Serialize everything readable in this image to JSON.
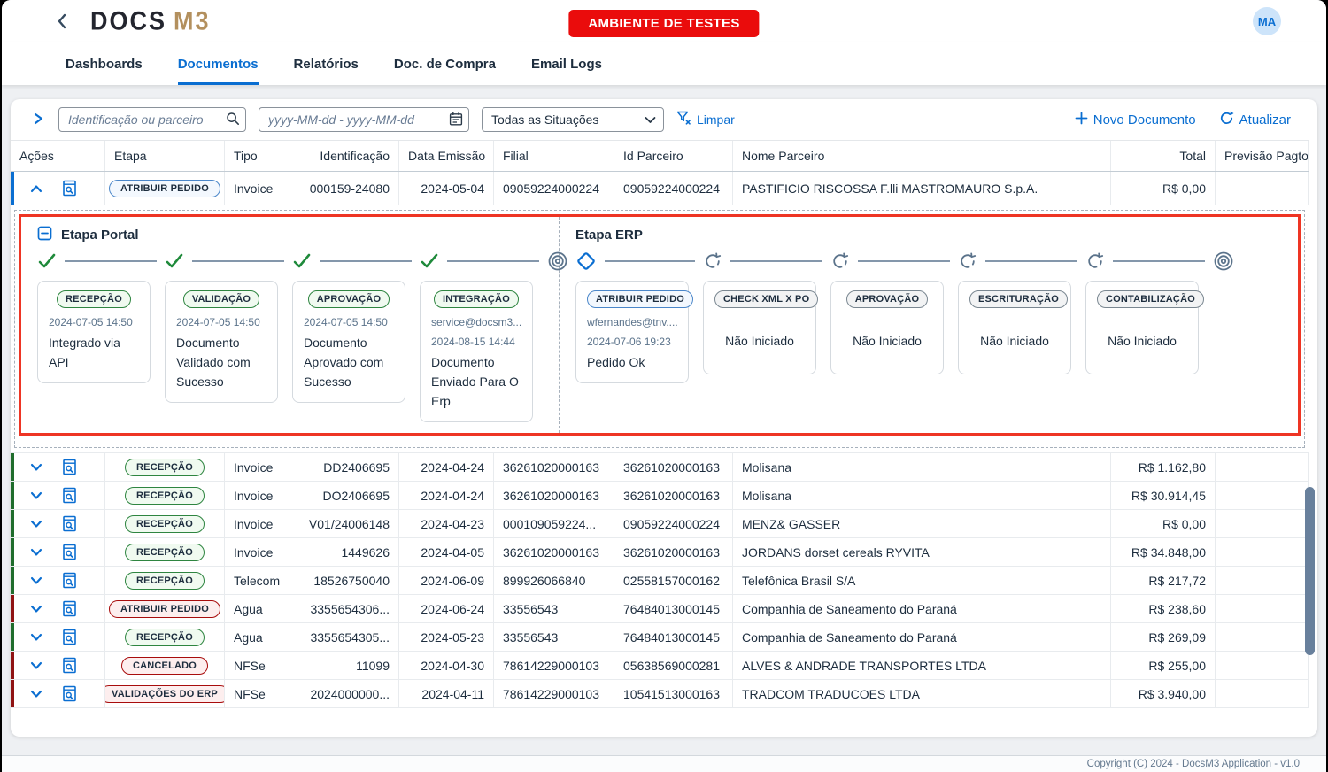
{
  "header": {
    "logo_docs": "DOCS",
    "logo_m3": "M3",
    "env_badge": "AMBIENTE DE TESTES",
    "avatar_initials": "MA"
  },
  "nav": {
    "tabs": [
      {
        "label": "Dashboards",
        "active": false
      },
      {
        "label": "Documentos",
        "active": true
      },
      {
        "label": "Relatórios",
        "active": false
      },
      {
        "label": "Doc. de Compra",
        "active": false
      },
      {
        "label": "Email Logs",
        "active": false
      }
    ]
  },
  "toolbar": {
    "search_placeholder": "Identificação ou parceiro",
    "date_placeholder": "yyyy-MM-dd - yyyy-MM-dd",
    "status_value": "Todas as Situações",
    "clear_label": "Limpar",
    "new_doc_label": "Novo Documento",
    "refresh_label": "Atualizar"
  },
  "table": {
    "columns": [
      "Ações",
      "Etapa",
      "Tipo",
      "Identificação",
      "Data Emissão",
      "Filial",
      "Id Parceiro",
      "Nome Parceiro",
      "Total",
      "Previsão Pagto"
    ],
    "rows": [
      {
        "etapa": "ATRIBUIR PEDIDO",
        "variant": "blue",
        "strip": "blue",
        "expanded": true,
        "tipo": "Invoice",
        "identificacao": "000159-24080",
        "data_emissao": "2024-05-04",
        "filial": "09059224000224",
        "id_parceiro": "09059224000224",
        "nome_parceiro": "PASTIFICIO RISCOSSA F.lli MASTROMAURO S.p.A.",
        "total": "R$ 0,00",
        "previsao_pagto": ""
      },
      {
        "etapa": "RECEPÇÃO",
        "variant": "green",
        "strip": "green",
        "expanded": false,
        "tipo": "Invoice",
        "identificacao": "DD2406695",
        "data_emissao": "2024-04-24",
        "filial": "36261020000163",
        "id_parceiro": "36261020000163",
        "nome_parceiro": "Molisana",
        "total": "R$ 1.162,80",
        "previsao_pagto": ""
      },
      {
        "etapa": "RECEPÇÃO",
        "variant": "green",
        "strip": "green",
        "expanded": false,
        "tipo": "Invoice",
        "identificacao": "DO2406695",
        "data_emissao": "2024-04-24",
        "filial": "36261020000163",
        "id_parceiro": "36261020000163",
        "nome_parceiro": "Molisana",
        "total": "R$ 30.914,45",
        "previsao_pagto": ""
      },
      {
        "etapa": "RECEPÇÃO",
        "variant": "green",
        "strip": "green",
        "expanded": false,
        "tipo": "Invoice",
        "identificacao": "V01/24006148",
        "data_emissao": "2024-04-23",
        "filial": "000109059224...",
        "id_parceiro": "09059224000224",
        "nome_parceiro": "MENZ& GASSER",
        "total": "R$ 0,00",
        "previsao_pagto": ""
      },
      {
        "etapa": "RECEPÇÃO",
        "variant": "green",
        "strip": "green",
        "expanded": false,
        "tipo": "Invoice",
        "identificacao": "1449626",
        "data_emissao": "2024-04-05",
        "filial": "36261020000163",
        "id_parceiro": "36261020000163",
        "nome_parceiro": "JORDANS dorset cereals RYVITA",
        "total": "R$ 34.848,00",
        "previsao_pagto": ""
      },
      {
        "etapa": "RECEPÇÃO",
        "variant": "green",
        "strip": "green",
        "expanded": false,
        "tipo": "Telecom",
        "identificacao": "18526750040",
        "data_emissao": "2024-06-09",
        "filial": "899926066840",
        "id_parceiro": "02558157000162",
        "nome_parceiro": "Telefônica Brasil S/A",
        "total": "R$ 217,72",
        "previsao_pagto": ""
      },
      {
        "etapa": "ATRIBUIR PEDIDO",
        "variant": "red",
        "strip": "red",
        "expanded": false,
        "tipo": "Agua",
        "identificacao": "3355654306...",
        "data_emissao": "2024-06-24",
        "filial": "33556543",
        "id_parceiro": "76484013000145",
        "nome_parceiro": "Companhia de Saneamento do Paraná",
        "total": "R$ 238,60",
        "previsao_pagto": ""
      },
      {
        "etapa": "RECEPÇÃO",
        "variant": "green",
        "strip": "green",
        "expanded": false,
        "tipo": "Agua",
        "identificacao": "3355654305...",
        "data_emissao": "2024-05-23",
        "filial": "33556543",
        "id_parceiro": "76484013000145",
        "nome_parceiro": "Companhia de Saneamento do Paraná",
        "total": "R$ 269,09",
        "previsao_pagto": ""
      },
      {
        "etapa": "CANCELADO",
        "variant": "red",
        "strip": "red",
        "expanded": false,
        "tipo": "NFSe",
        "identificacao": "11099",
        "data_emissao": "2024-04-30",
        "filial": "78614229000103",
        "id_parceiro": "05638569000281",
        "nome_parceiro": "ALVES & ANDRADE TRANSPORTES LTDA",
        "total": "R$ 255,00",
        "previsao_pagto": ""
      },
      {
        "etapa": "VALIDAÇÕES DO ERP",
        "variant": "red",
        "strip": "red",
        "expanded": false,
        "tipo": "NFSe",
        "identificacao": "2024000000...",
        "data_emissao": "2024-04-11",
        "filial": "78614229000103",
        "id_parceiro": "10541513000163",
        "nome_parceiro": "TRADCOM TRADUCOES LTDA",
        "total": "R$ 3.940,00",
        "previsao_pagto": ""
      }
    ]
  },
  "expanded": {
    "portal": {
      "title": "Etapa Portal",
      "collapsible": true,
      "end_icon": "target",
      "steps": [
        {
          "badge": "RECEPÇÃO",
          "variant": "green",
          "icon": "check",
          "lines": [
            {
              "t": "2024-07-05 14:50",
              "s": "muted"
            },
            {
              "t": "Integrado via API",
              "s": "msg"
            }
          ]
        },
        {
          "badge": "VALIDAÇÃO",
          "variant": "green",
          "icon": "check",
          "lines": [
            {
              "t": "2024-07-05 14:50",
              "s": "muted"
            },
            {
              "t": "Documento Validado com Sucesso",
              "s": "msg"
            }
          ]
        },
        {
          "badge": "APROVAÇÃO",
          "variant": "green",
          "icon": "check",
          "lines": [
            {
              "t": "2024-07-05 14:50",
              "s": "muted"
            },
            {
              "t": "Documento Aprovado com Sucesso",
              "s": "msg"
            }
          ]
        },
        {
          "badge": "INTEGRAÇÃO",
          "variant": "green",
          "icon": "check",
          "lines": [
            {
              "t": "service@docsm3...",
              "s": "muted"
            },
            {
              "t": "2024-08-15 14:44",
              "s": "muted"
            },
            {
              "t": "Documento Enviado Para O Erp",
              "s": "msg"
            }
          ]
        }
      ]
    },
    "erp": {
      "title": "Etapa ERP",
      "collapsible": false,
      "end_icon": "target",
      "steps": [
        {
          "badge": "ATRIBUIR PEDIDO",
          "variant": "blue",
          "icon": "diamond",
          "lines": [
            {
              "t": "wfernandes@tnv....",
              "s": "muted"
            },
            {
              "t": "2024-07-06 19:23",
              "s": "muted"
            },
            {
              "t": "Pedido Ok",
              "s": "msg"
            }
          ]
        },
        {
          "badge": "CHECK XML X PO",
          "variant": "gray",
          "icon": "sync",
          "lines": [
            {
              "t": "Não Iniciado",
              "s": "status"
            }
          ]
        },
        {
          "badge": "APROVAÇÃO",
          "variant": "gray",
          "icon": "sync",
          "lines": [
            {
              "t": "Não Iniciado",
              "s": "status"
            }
          ]
        },
        {
          "badge": "ESCRITURAÇÃO",
          "variant": "gray",
          "icon": "sync",
          "lines": [
            {
              "t": "Não Iniciado",
              "s": "status"
            }
          ]
        },
        {
          "badge": "CONTABILIZAÇÃO",
          "variant": "gray",
          "icon": "sync",
          "lines": [
            {
              "t": "Não Iniciado",
              "s": "status"
            }
          ]
        }
      ]
    }
  },
  "footer": {
    "copyright": "Copyright (C) 2024 - DocsM3 Application - v1.0"
  },
  "colors": {
    "accent_blue": "#0a6ed1",
    "env_red": "#ea0c0c",
    "highlight_red_border": "#ee3524",
    "strip_green": "#1f6d2c",
    "strip_red": "#8f1313",
    "strip_blue": "#0a6ed1",
    "scrollbar_thumb": "#68809c"
  }
}
